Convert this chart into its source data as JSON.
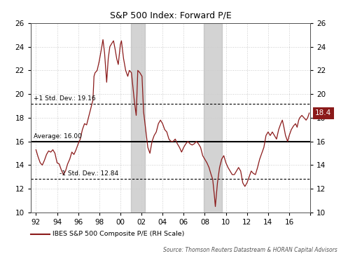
{
  "title": "S&P 500 Index: Forward P/E",
  "avg_line": 16.0,
  "upper_std_line": 19.16,
  "lower_std_line": 12.84,
  "current_value": 18.4,
  "avg_label": "Average: 16.00",
  "upper_label": "+1 Std. Dev.: 19.16",
  "lower_label": "-1 Std. Dev.: 12.84",
  "legend_label": "IBES S&P 500 Composite P/E (RH Scale)",
  "source_text": "Source: Thomson Reuters Datastream & HORAN Capital Advisors",
  "line_color": "#8B1A1A",
  "ylim_min": 10,
  "ylim_max": 26,
  "shade1_start": 2001.0,
  "shade1_end": 2002.3,
  "shade2_start": 2007.9,
  "shade2_end": 2009.6,
  "x_tick_labels": [
    "92",
    "94",
    "96",
    "98",
    "00",
    "02",
    "04",
    "06",
    "08",
    "10",
    "12",
    "14",
    "16",
    ""
  ],
  "x_tick_positions": [
    1992,
    1994,
    1996,
    1998,
    2000,
    2002,
    2004,
    2006,
    2008,
    2010,
    2012,
    2014,
    2016,
    2018
  ],
  "y_ticks": [
    10,
    12,
    14,
    16,
    18,
    20,
    22,
    24,
    26
  ],
  "xlim_left": 1991.5,
  "xlim_right": 2018.0,
  "pe_data": [
    [
      1992.0,
      15.3
    ],
    [
      1992.2,
      14.7
    ],
    [
      1992.4,
      14.2
    ],
    [
      1992.6,
      14.0
    ],
    [
      1992.8,
      14.4
    ],
    [
      1993.0,
      14.9
    ],
    [
      1993.2,
      15.2
    ],
    [
      1993.4,
      15.1
    ],
    [
      1993.6,
      15.3
    ],
    [
      1993.8,
      15.0
    ],
    [
      1994.0,
      14.2
    ],
    [
      1994.2,
      14.1
    ],
    [
      1994.4,
      13.6
    ],
    [
      1994.6,
      13.2
    ],
    [
      1994.8,
      13.5
    ],
    [
      1995.0,
      14.1
    ],
    [
      1995.2,
      14.5
    ],
    [
      1995.4,
      15.1
    ],
    [
      1995.6,
      14.9
    ],
    [
      1995.8,
      15.3
    ],
    [
      1996.0,
      15.8
    ],
    [
      1996.2,
      16.2
    ],
    [
      1996.4,
      17.0
    ],
    [
      1996.6,
      17.5
    ],
    [
      1996.8,
      17.4
    ],
    [
      1997.0,
      18.1
    ],
    [
      1997.2,
      18.8
    ],
    [
      1997.4,
      19.5
    ],
    [
      1997.5,
      21.5
    ],
    [
      1997.6,
      21.8
    ],
    [
      1997.8,
      22.0
    ],
    [
      1998.0,
      22.8
    ],
    [
      1998.2,
      23.8
    ],
    [
      1998.35,
      24.6
    ],
    [
      1998.5,
      23.5
    ],
    [
      1998.7,
      21.0
    ],
    [
      1998.85,
      23.0
    ],
    [
      1999.0,
      24.0
    ],
    [
      1999.2,
      24.3
    ],
    [
      1999.35,
      24.5
    ],
    [
      1999.5,
      23.8
    ],
    [
      1999.65,
      23.0
    ],
    [
      1999.8,
      22.5
    ],
    [
      2000.0,
      24.2
    ],
    [
      2000.1,
      24.5
    ],
    [
      2000.3,
      23.0
    ],
    [
      2000.5,
      22.0
    ],
    [
      2000.7,
      21.5
    ],
    [
      2000.85,
      22.0
    ],
    [
      2001.05,
      21.8
    ],
    [
      2001.2,
      20.5
    ],
    [
      2001.35,
      19.2
    ],
    [
      2001.5,
      18.2
    ],
    [
      2001.65,
      22.0
    ],
    [
      2001.85,
      21.8
    ],
    [
      2002.05,
      21.5
    ],
    [
      2002.2,
      18.5
    ],
    [
      2002.4,
      17.0
    ],
    [
      2002.6,
      15.5
    ],
    [
      2002.8,
      15.0
    ],
    [
      2003.0,
      16.0
    ],
    [
      2003.2,
      16.5
    ],
    [
      2003.4,
      16.8
    ],
    [
      2003.6,
      17.5
    ],
    [
      2003.8,
      17.8
    ],
    [
      2004.0,
      17.5
    ],
    [
      2004.2,
      17.0
    ],
    [
      2004.4,
      16.8
    ],
    [
      2004.6,
      16.2
    ],
    [
      2004.8,
      16.0
    ],
    [
      2005.0,
      16.0
    ],
    [
      2005.2,
      16.2
    ],
    [
      2005.4,
      15.8
    ],
    [
      2005.6,
      15.5
    ],
    [
      2005.8,
      15.1
    ],
    [
      2006.0,
      15.5
    ],
    [
      2006.2,
      15.8
    ],
    [
      2006.4,
      16.0
    ],
    [
      2006.6,
      15.8
    ],
    [
      2006.8,
      15.7
    ],
    [
      2007.0,
      15.8
    ],
    [
      2007.2,
      16.0
    ],
    [
      2007.4,
      15.8
    ],
    [
      2007.6,
      15.5
    ],
    [
      2007.8,
      14.8
    ],
    [
      2008.0,
      14.5
    ],
    [
      2008.2,
      14.2
    ],
    [
      2008.4,
      13.8
    ],
    [
      2008.6,
      13.2
    ],
    [
      2008.75,
      12.8
    ],
    [
      2008.9,
      11.5
    ],
    [
      2009.0,
      10.5
    ],
    [
      2009.2,
      12.5
    ],
    [
      2009.4,
      13.8
    ],
    [
      2009.6,
      14.5
    ],
    [
      2009.8,
      14.8
    ],
    [
      2010.0,
      14.2
    ],
    [
      2010.2,
      13.8
    ],
    [
      2010.4,
      13.5
    ],
    [
      2010.6,
      13.2
    ],
    [
      2010.8,
      13.2
    ],
    [
      2011.0,
      13.5
    ],
    [
      2011.2,
      13.8
    ],
    [
      2011.4,
      13.5
    ],
    [
      2011.6,
      12.5
    ],
    [
      2011.8,
      12.2
    ],
    [
      2012.0,
      12.5
    ],
    [
      2012.2,
      13.0
    ],
    [
      2012.4,
      13.5
    ],
    [
      2012.6,
      13.3
    ],
    [
      2012.8,
      13.2
    ],
    [
      2013.0,
      13.8
    ],
    [
      2013.2,
      14.5
    ],
    [
      2013.4,
      15.0
    ],
    [
      2013.6,
      15.5
    ],
    [
      2013.8,
      16.5
    ],
    [
      2014.0,
      16.8
    ],
    [
      2014.2,
      16.5
    ],
    [
      2014.4,
      16.8
    ],
    [
      2014.6,
      16.5
    ],
    [
      2014.8,
      16.2
    ],
    [
      2015.0,
      17.0
    ],
    [
      2015.2,
      17.5
    ],
    [
      2015.35,
      17.8
    ],
    [
      2015.5,
      17.2
    ],
    [
      2015.65,
      16.5
    ],
    [
      2015.85,
      16.0
    ],
    [
      2016.0,
      16.5
    ],
    [
      2016.2,
      17.0
    ],
    [
      2016.4,
      17.3
    ],
    [
      2016.6,
      17.5
    ],
    [
      2016.75,
      17.2
    ],
    [
      2016.9,
      17.8
    ],
    [
      2017.0,
      18.0
    ],
    [
      2017.2,
      18.2
    ],
    [
      2017.4,
      18.0
    ],
    [
      2017.6,
      17.8
    ],
    [
      2017.75,
      18.0
    ],
    [
      2017.9,
      18.4
    ]
  ]
}
